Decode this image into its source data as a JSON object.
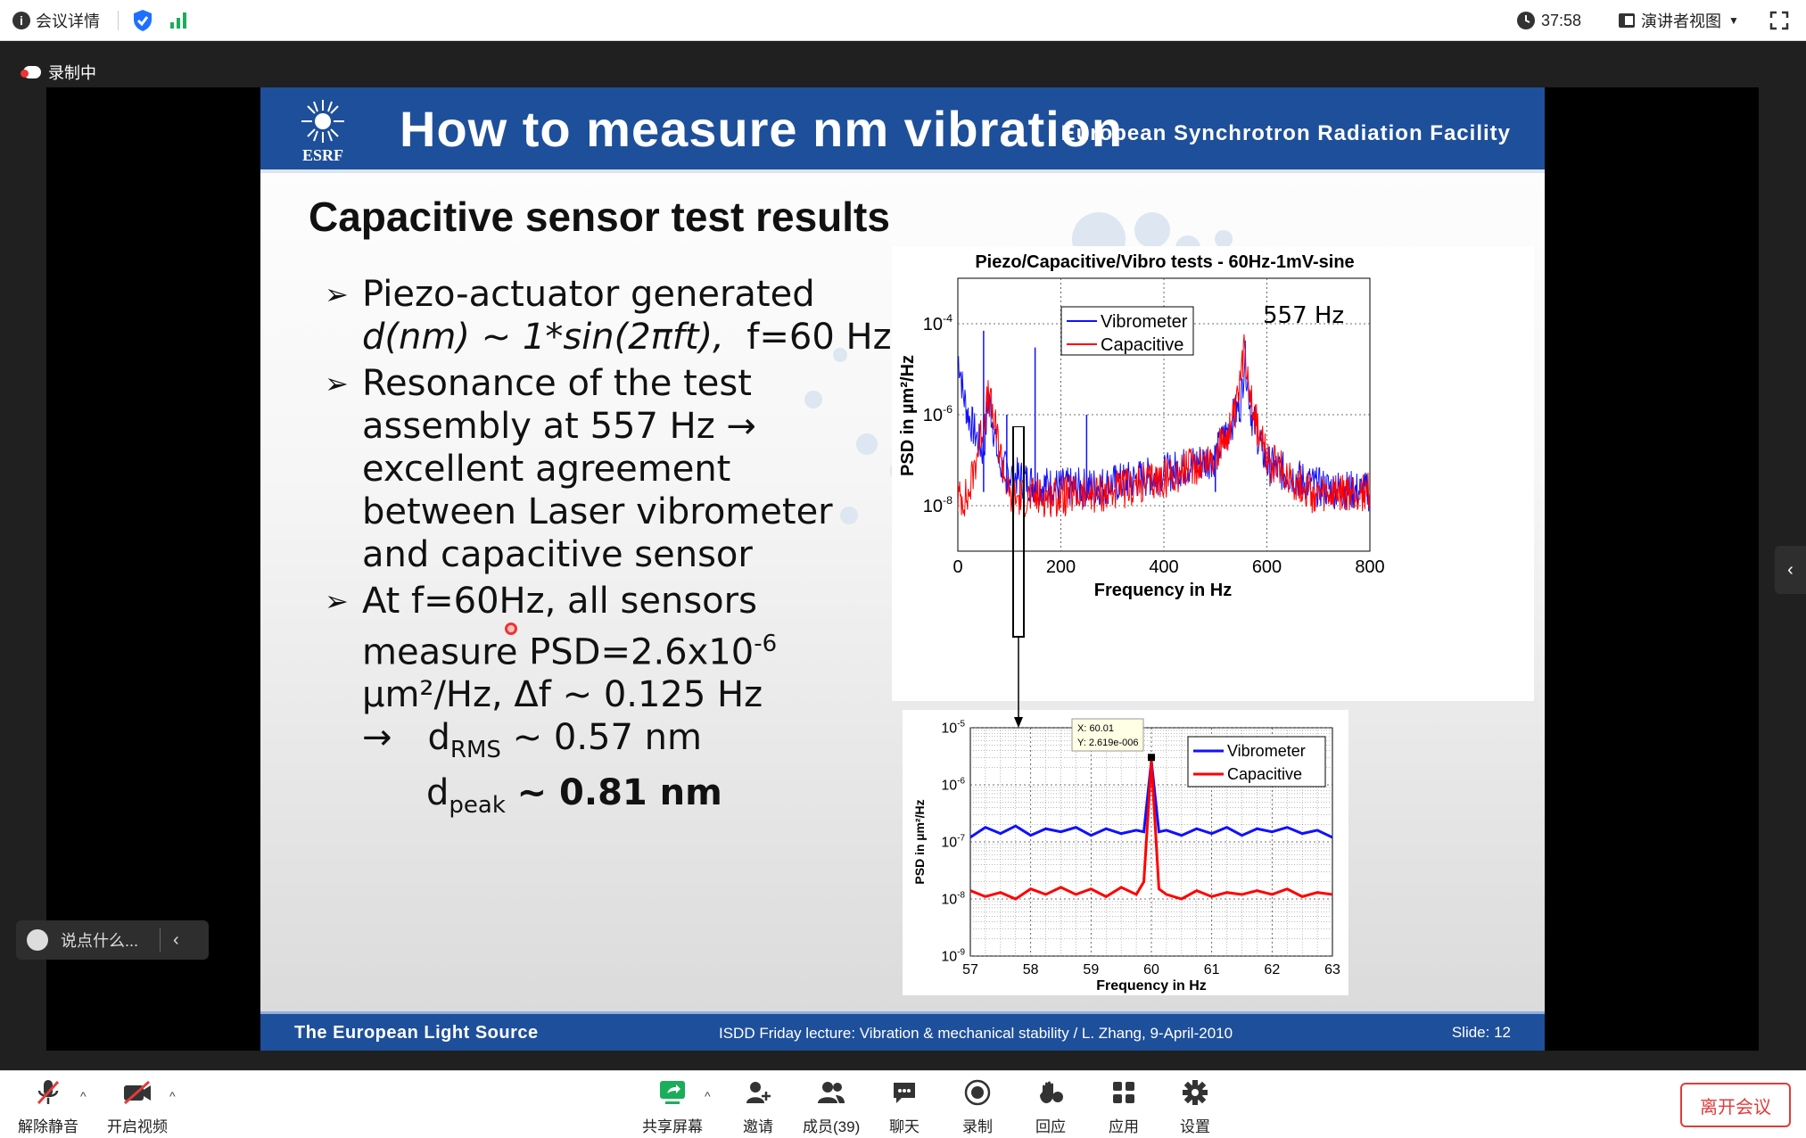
{
  "topbar": {
    "meeting_info": "会议详情",
    "timer": "37:58",
    "view_mode": "演讲者视图"
  },
  "recording": "录制中",
  "slide": {
    "title": "How to measure nm vibration",
    "org": "European Synchrotron Radiation Facility",
    "logo_text": "ESRF",
    "subtitle": "Capacitive sensor test results",
    "bullet1_l1": "Piezo-actuator generated",
    "bullet1_l2a": "d(nm) ~ 1*sin(2πft),",
    "bullet1_l2b": "f=60 Hz",
    "bullet2_l1": "Resonance of the test",
    "bullet2_l2": "assembly at 557 Hz →",
    "bullet2_l3": "excellent agreement",
    "bullet2_l4": "between Laser vibrometer",
    "bullet2_l5": "and capacitive sensor",
    "bullet3_l1": "At f=60Hz, all sensors",
    "bullet3_l2": "measure PSD=2.6x10",
    "bullet3_l2_exp": "-6",
    "bullet3_l3": "µm²/Hz, Δf ~ 0.125 Hz",
    "bullet3_arrow": "→",
    "drms_d": "d",
    "drms_sub": "RMS",
    "drms_val": "~ 0.57 nm",
    "dpeak_d": "d",
    "dpeak_sub": "peak",
    "dpeak_val": "~ 0.81 nm",
    "footer_left": "The European Light Source",
    "footer_center": "ISDD Friday lecture: Vibration & mechanical stability / L. Zhang,  9-April-2010",
    "footer_right": "Slide: 12"
  },
  "chart_data": [
    {
      "type": "line",
      "title": "Piezo/Capacitive/Vibro tests - 60Hz-1mV-sine",
      "xlabel": "Frequency in Hz",
      "ylabel": "PSD in µm²/Hz",
      "xlim": [
        0,
        800
      ],
      "ylim": [
        1e-09,
        0.001
      ],
      "y_scale": "log",
      "x_ticks": [
        "0",
        "200",
        "400",
        "600",
        "800"
      ],
      "y_ticks": [
        "10^-4",
        "10^-6",
        "10^-8"
      ],
      "legend": [
        "Vibrometer",
        "Capacitive"
      ],
      "legend_position": "top-center",
      "annotation": "557 Hz",
      "series": [
        {
          "name": "Vibrometer",
          "color": "#1010ff",
          "x": [
            0,
            5,
            10,
            20,
            30,
            40,
            50,
            60,
            80,
            100,
            120,
            150,
            200,
            250,
            300,
            400,
            500,
            550,
            557,
            570,
            600,
            700,
            800
          ],
          "y": [
            2e-05,
            1e-05,
            3e-06,
            1e-06,
            5e-07,
            2.5e-07,
            1.5e-07,
            2.6e-06,
            8e-08,
            5e-08,
            4e-08,
            3e-08,
            2.5e-08,
            2.5e-08,
            3e-08,
            5e-08,
            1.2e-07,
            2e-06,
            2e-05,
            1e-06,
            8e-08,
            2.5e-08,
            2e-08
          ]
        },
        {
          "name": "Capacitive",
          "color": "#ff0000",
          "x": [
            0,
            20,
            60,
            100,
            200,
            300,
            400,
            500,
            540,
            557,
            575,
            600,
            700,
            800
          ],
          "y": [
            1.5e-08,
            1.5e-08,
            2.6e-06,
            1.5e-08,
            1.6e-08,
            2e-08,
            4e-08,
            1.2e-07,
            1e-06,
            3e-05,
            1e-06,
            1e-07,
            1.5e-08,
            2e-08
          ]
        }
      ],
      "spikes_vibrometer": [
        [
          50,
          7e-05
        ],
        [
          150,
          3e-05
        ],
        [
          95,
          1e-06
        ],
        [
          250,
          1e-06
        ],
        [
          500,
          2e-07
        ]
      ]
    },
    {
      "type": "line",
      "xlabel": "Frequency in Hz",
      "ylabel": "PSD in µm²/Hz",
      "xlim": [
        57,
        63
      ],
      "ylim": [
        1e-09,
        1e-05
      ],
      "y_scale": "log",
      "x_ticks": [
        "57",
        "58",
        "59",
        "60",
        "61",
        "62",
        "63"
      ],
      "y_ticks": [
        "10^-5",
        "10^-6",
        "10^-7",
        "10^-8",
        "10^-9"
      ],
      "legend": [
        "Vibrometer",
        "Capacitive"
      ],
      "legend_position": "top-right",
      "datatip": {
        "x_label": "X: 60.01",
        "y_label": "Y: 2.619e-006"
      },
      "series": [
        {
          "name": "Vibrometer",
          "color": "#1010ff",
          "x": [
            57,
            57.25,
            57.5,
            57.75,
            58,
            58.25,
            58.5,
            58.75,
            59,
            59.25,
            59.5,
            59.75,
            59.875,
            60,
            60.125,
            60.25,
            60.5,
            60.75,
            61,
            61.25,
            61.5,
            61.75,
            62,
            62.25,
            62.5,
            62.75,
            63
          ],
          "y": [
            1.2e-07,
            1.8e-07,
            1.4e-07,
            1.9e-07,
            1.3e-07,
            1.7e-07,
            1.5e-07,
            1.8e-07,
            1.3e-07,
            1.7e-07,
            1.4e-07,
            1.6e-07,
            1.5e-07,
            2.62e-06,
            1.5e-07,
            1.6e-07,
            1.3e-07,
            1.7e-07,
            1.4e-07,
            1.8e-07,
            1.3e-07,
            1.7e-07,
            1.5e-07,
            1.8e-07,
            1.4e-07,
            1.6e-07,
            1.2e-07
          ]
        },
        {
          "name": "Capacitive",
          "color": "#ff0000",
          "x": [
            57,
            57.25,
            57.5,
            57.75,
            58,
            58.25,
            58.5,
            58.75,
            59,
            59.25,
            59.5,
            59.75,
            59.875,
            60,
            60.125,
            60.25,
            60.5,
            60.75,
            61,
            61.25,
            61.5,
            61.75,
            62,
            62.25,
            62.5,
            62.75,
            63
          ],
          "y": [
            1.4e-08,
            1.1e-08,
            1.3e-08,
            1e-08,
            1.5e-08,
            1.2e-08,
            1.6e-08,
            1.2e-08,
            1.5e-08,
            1.1e-08,
            1.6e-08,
            1.2e-08,
            2e-08,
            2.62e-06,
            1.5e-08,
            1.2e-08,
            1e-08,
            1.4e-08,
            1.1e-08,
            1.3e-08,
            1.2e-08,
            1.4e-08,
            1.2e-08,
            1.5e-08,
            1.1e-08,
            1.3e-08,
            1.2e-08
          ]
        }
      ]
    }
  ],
  "chat": {
    "placeholder": "说点什么..."
  },
  "toolbar": {
    "unmute": "解除静音",
    "start_video": "开启视频",
    "share_screen": "共享屏幕",
    "invite": "邀请",
    "members": "成员(39)",
    "chat": "聊天",
    "record": "录制",
    "reactions": "回应",
    "apps": "应用",
    "settings": "设置",
    "leave": "离开会议"
  },
  "colors": {
    "slide_blue": "#1e4f9a",
    "leave_red": "#e23b3b",
    "share_green": "#1aad5b"
  }
}
